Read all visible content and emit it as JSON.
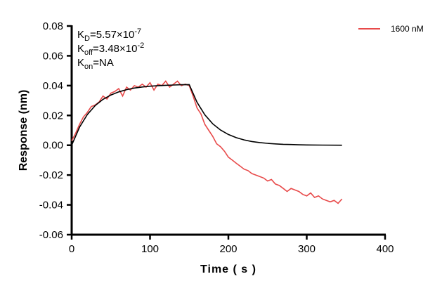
{
  "chart_data": {
    "type": "line",
    "xlabel": "Time ( s )",
    "ylabel": "Response (nm)",
    "xlim": [
      0,
      400
    ],
    "ylim": [
      -0.06,
      0.08
    ],
    "xticks": [
      "0",
      "100",
      "200",
      "300",
      "400"
    ],
    "yticks": [
      "0.08",
      "0.06",
      "0.04",
      "0.02",
      "0.00",
      "-0.02",
      "-0.04",
      "-0.06"
    ],
    "grid": false,
    "legend_position": "top-right",
    "annotations": [
      {
        "base": "K",
        "sub": "D",
        "text": "=5.57×10",
        "sup": "-7"
      },
      {
        "base": "K",
        "sub": "off",
        "text": "=3.48×10",
        "sup": "-2"
      },
      {
        "base": "K",
        "sub": "on",
        "text": "=NA",
        "sup": ""
      }
    ],
    "series": [
      {
        "name": "1600 nM",
        "color": "#e84a4a",
        "x": [
          0,
          5,
          10,
          15,
          20,
          25,
          30,
          35,
          40,
          45,
          50,
          55,
          60,
          65,
          70,
          75,
          80,
          85,
          90,
          95,
          100,
          105,
          110,
          115,
          120,
          125,
          130,
          135,
          140,
          145,
          150,
          155,
          160,
          165,
          170,
          175,
          180,
          185,
          190,
          195,
          200,
          205,
          210,
          215,
          220,
          225,
          230,
          235,
          240,
          245,
          250,
          255,
          260,
          265,
          270,
          275,
          280,
          285,
          290,
          295,
          300,
          305,
          310,
          315,
          320,
          325,
          330,
          335,
          340,
          345
        ],
        "y": [
          0.003,
          0.008,
          0.014,
          0.019,
          0.022,
          0.026,
          0.027,
          0.029,
          0.033,
          0.031,
          0.035,
          0.036,
          0.038,
          0.033,
          0.039,
          0.037,
          0.04,
          0.039,
          0.041,
          0.039,
          0.042,
          0.037,
          0.041,
          0.04,
          0.043,
          0.039,
          0.041,
          0.043,
          0.04,
          0.041,
          0.04,
          0.033,
          0.025,
          0.021,
          0.014,
          0.01,
          0.006,
          0.001,
          -0.001,
          -0.004,
          -0.008,
          -0.01,
          -0.012,
          -0.014,
          -0.016,
          -0.017,
          -0.019,
          -0.02,
          -0.021,
          -0.022,
          -0.024,
          -0.023,
          -0.026,
          -0.027,
          -0.029,
          -0.031,
          -0.029,
          -0.03,
          -0.031,
          -0.033,
          -0.034,
          -0.032,
          -0.035,
          -0.034,
          -0.036,
          -0.037,
          -0.038,
          -0.037,
          -0.039,
          -0.036
        ]
      },
      {
        "color": "#000000",
        "x": [
          0,
          10,
          20,
          30,
          40,
          50,
          60,
          70,
          80,
          90,
          100,
          110,
          120,
          130,
          140,
          150,
          160,
          170,
          180,
          190,
          200,
          210,
          220,
          230,
          240,
          250,
          260,
          270,
          280,
          290,
          300,
          320,
          345
        ],
        "y": [
          0,
          0.0121,
          0.0206,
          0.0266,
          0.0308,
          0.0337,
          0.0358,
          0.0373,
          0.0384,
          0.0391,
          0.0396,
          0.04,
          0.0402,
          0.0404,
          0.0406,
          0.0407,
          0.0288,
          0.0204,
          0.0144,
          0.0102,
          0.0072,
          0.0051,
          0.0036,
          0.0025,
          0.0018,
          0.0013,
          0.0009,
          0.0006,
          0.0005,
          0.0003,
          0.0002,
          0.0001,
          0.0
        ]
      }
    ]
  }
}
